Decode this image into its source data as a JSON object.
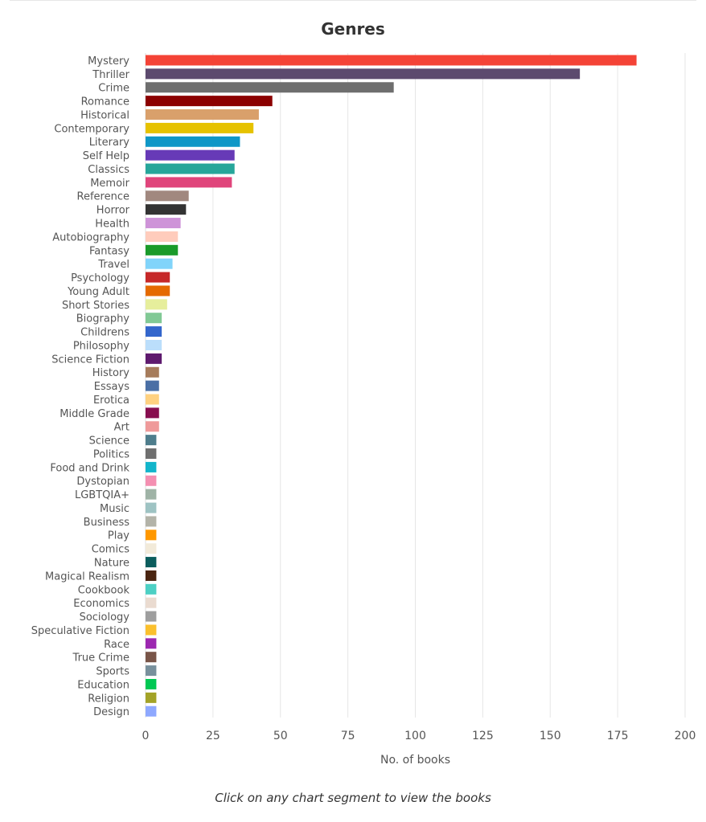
{
  "chart_data": {
    "type": "bar",
    "orientation": "horizontal",
    "title": "Genres",
    "xlabel": "No. of books",
    "ylabel": "",
    "xlim": [
      0,
      200
    ],
    "xticks": [
      0,
      25,
      50,
      75,
      100,
      125,
      150,
      175,
      200
    ],
    "grid": true,
    "categories": [
      "Mystery",
      "Thriller",
      "Crime",
      "Romance",
      "Historical",
      "Contemporary",
      "Literary",
      "Self Help",
      "Classics",
      "Memoir",
      "Reference",
      "Horror",
      "Health",
      "Autobiography",
      "Fantasy",
      "Travel",
      "Psychology",
      "Young Adult",
      "Short Stories",
      "Biography",
      "Childrens",
      "Philosophy",
      "Science Fiction",
      "History",
      "Essays",
      "Erotica",
      "Middle Grade",
      "Art",
      "Science",
      "Politics",
      "Food and Drink",
      "Dystopian",
      "LGBTQIA+",
      "Music",
      "Business",
      "Play",
      "Comics",
      "Nature",
      "Magical Realism",
      "Cookbook",
      "Economics",
      "Sociology",
      "Speculative Fiction",
      "Race",
      "True Crime",
      "Sports",
      "Education",
      "Religion",
      "Design"
    ],
    "values": [
      182,
      161,
      92,
      47,
      42,
      40,
      35,
      33,
      33,
      32,
      16,
      15,
      13,
      12,
      12,
      10,
      9,
      9,
      8,
      6,
      6,
      6,
      6,
      5,
      5,
      5,
      5,
      5,
      4,
      4,
      4,
      4,
      4,
      4,
      4,
      4,
      4,
      4,
      4,
      4,
      4,
      4,
      4,
      4,
      4,
      4,
      4,
      4,
      4
    ],
    "colors": [
      "#f44336",
      "#5c4a6e",
      "#6e6e6e",
      "#8b0000",
      "#d9a06b",
      "#e6c200",
      "#0f97c7",
      "#673ab7",
      "#26a69a",
      "#e0457b",
      "#a1887f",
      "#333333",
      "#ce93d8",
      "#ffccbc",
      "#1a9b2a",
      "#81d4fa",
      "#c62828",
      "#e56a00",
      "#e6ee9c",
      "#81c995",
      "#3366cc",
      "#bbdefb",
      "#5e1a6e",
      "#a67c5b",
      "#4a6fa5",
      "#ffd180",
      "#880e4f",
      "#ef9a9a",
      "#4e7d8c",
      "#6f6f6f",
      "#12b5cb",
      "#f48fb1",
      "#9fb3a6",
      "#9ec3c3",
      "#b3b3a8",
      "#ff9800",
      "#f2ead9",
      "#0b5d5d",
      "#4a2511",
      "#4dd0c4",
      "#eadbd0",
      "#9e9e9e",
      "#fbc02d",
      "#9c27b0",
      "#795548",
      "#78909c",
      "#00c853",
      "#a3a327",
      "#8ea8ff"
    ]
  },
  "footer": {
    "hint": "Click on any chart segment to view the books"
  }
}
